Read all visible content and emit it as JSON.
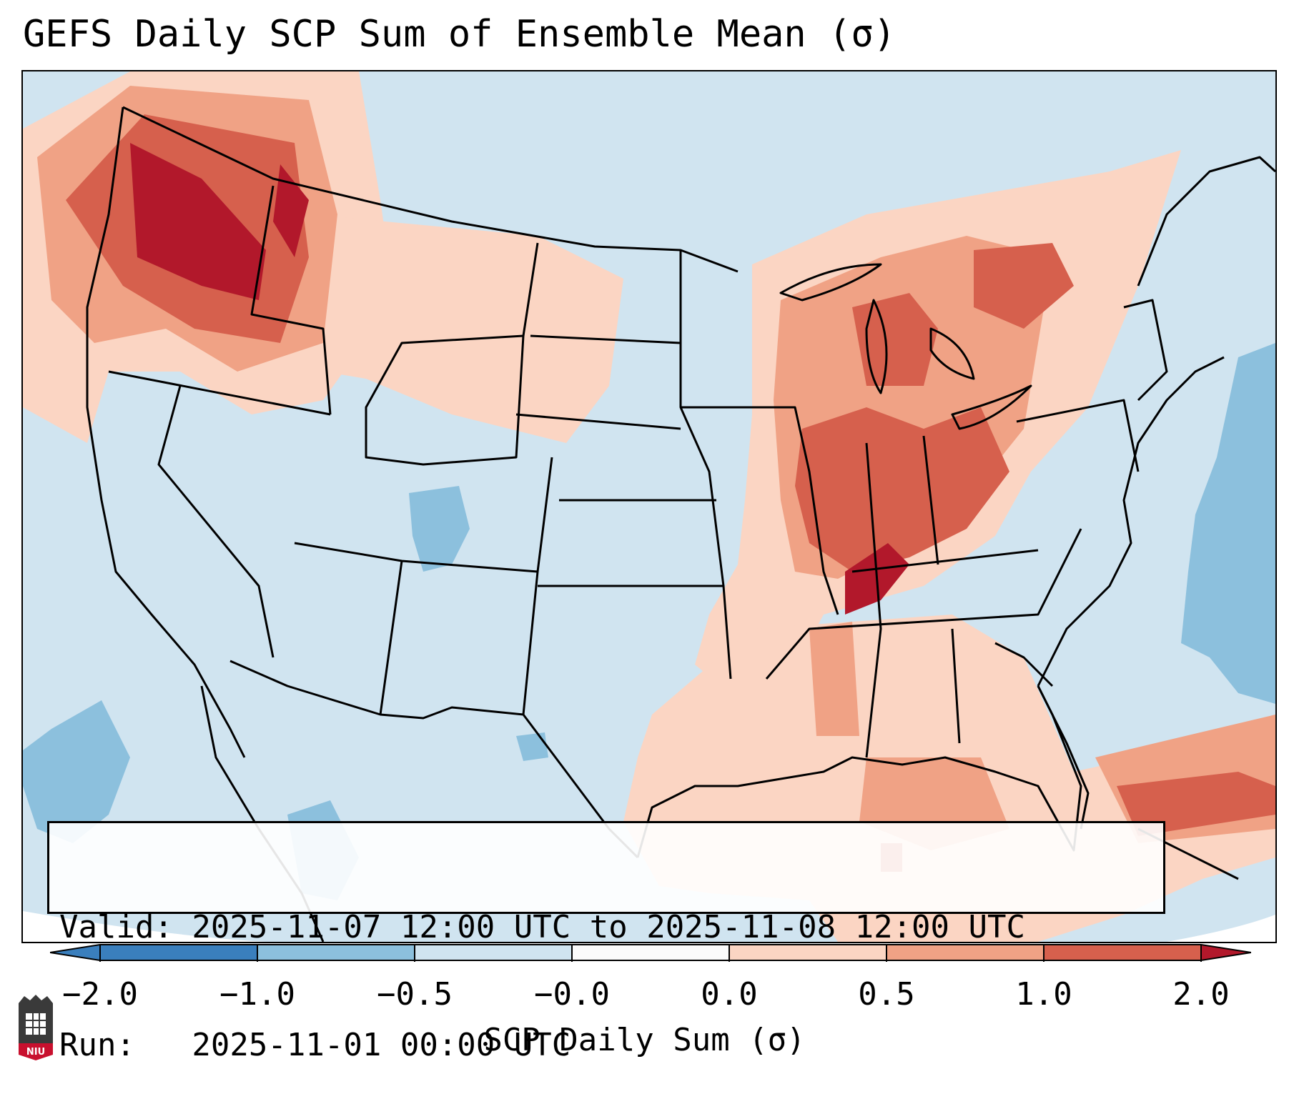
{
  "title": "GEFS Daily SCP Sum of Ensemble Mean (σ)",
  "info": {
    "valid_line": "Valid: 2025-11-07 12:00 UTC to 2025-11-08 12:00 UTC",
    "run_line": "Run:   2025-11-01 00:00 UTC"
  },
  "colorbar": {
    "label": "SCP Daily Sum (σ)",
    "ticks": [
      "−2.0",
      "−1.0",
      "−0.5",
      "−0.0",
      "0.0",
      "0.5",
      "1.0",
      "2.0"
    ],
    "colors": [
      "#3a7fbd",
      "#8cc0dd",
      "#d0e4f0",
      "#fbfbfb",
      "#fbd5c3",
      "#f0a285",
      "#d6604d",
      "#b2182b"
    ]
  },
  "map": {
    "region": "Continental United States",
    "ocean_color": "#d0e4f0",
    "shading_colors": {
      "light_red": "#fbd5c3",
      "mid_red": "#f0a285",
      "red": "#d6604d",
      "dark_red": "#b2182b",
      "light_blue": "#8cc0dd"
    }
  },
  "logo": {
    "text": "NIU",
    "color": "#c8102e"
  }
}
